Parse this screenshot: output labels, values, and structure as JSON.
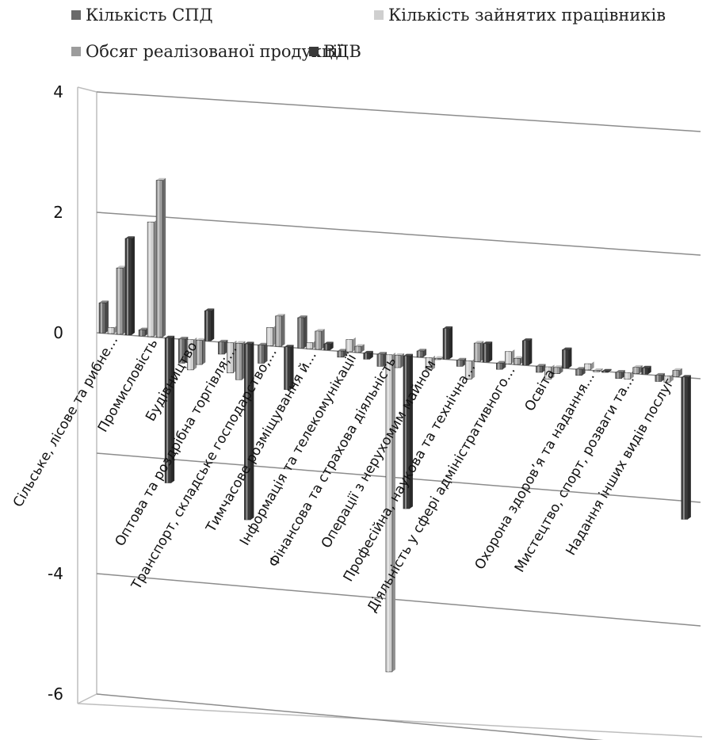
{
  "chart_data": {
    "type": "bar",
    "title": "",
    "xlabel": "",
    "ylabel": "",
    "ylim": [
      -6,
      4
    ],
    "y_ticks": [
      "4",
      "2",
      "0",
      "-4",
      "-6"
    ],
    "legend_position": "top",
    "grid": true,
    "categories": [
      "Сільське, лісове та рибне…",
      "Промисловість",
      "Будівництво",
      "Оптова та роздрібна торгівля;…",
      "Транспорт, складське господарство,…",
      "Тимчасове розміщування й…",
      "Інформація та телекомунікації",
      "Фінансова та страхова діяльність",
      "Операції з нерухомим майном",
      "Професійна, наукова та технічна…",
      "Діяльність у сфері адміністративного…",
      "Освіта",
      "Охорона здоров’я та надання…",
      "Мистецтво, спорт, розваги та…",
      "Надання інших видів послуг"
    ],
    "series": [
      {
        "name": "Кількість СПД",
        "color": "#6a6a6a",
        "values": [
          0.5,
          0.1,
          -0.4,
          -0.2,
          -0.3,
          0.5,
          -0.1,
          -0.2,
          0.1,
          -0.1,
          -0.1,
          -0.1,
          -0.1,
          -0.1,
          -0.1
        ]
      },
      {
        "name": "Кількість зайнятих працівників",
        "color": "#cfcfcf",
        "values": [
          0.1,
          1.9,
          -0.5,
          -0.5,
          0.3,
          0.1,
          0.2,
          -5.2,
          -0.2,
          -0.3,
          0.2,
          -0.2,
          0.1,
          -0.1,
          -0.1
        ]
      },
      {
        "name": "Обсяг реалізованої продукції",
        "color": "#9c9c9c",
        "values": [
          1.1,
          2.6,
          -0.4,
          -0.6,
          0.5,
          0.3,
          0.1,
          -0.2,
          0.0,
          0.3,
          0.1,
          -0.1,
          0.0,
          0.1,
          0.1
        ]
      },
      {
        "name": "ВДВ",
        "color": "#3a3a3a",
        "values": [
          1.6,
          -2.4,
          0.5,
          -2.9,
          -0.7,
          0.1,
          -0.1,
          -2.5,
          0.5,
          0.3,
          0.4,
          0.3,
          0.0,
          0.1,
          -2.3
        ]
      }
    ]
  }
}
